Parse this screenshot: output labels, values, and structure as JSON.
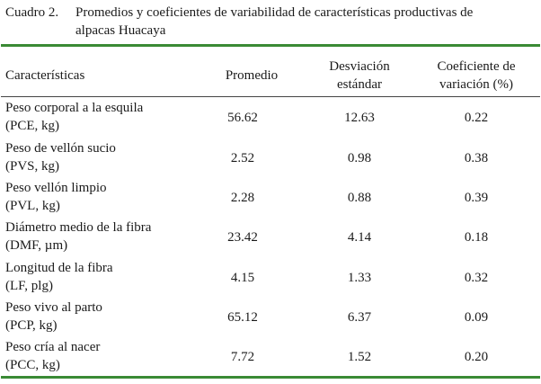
{
  "caption": {
    "label": "Cuadro 2.",
    "title_line1": "Promedios y coeficientes de variabilidad de características productivas de",
    "title_line2": "alpacas Huacaya"
  },
  "table": {
    "headers": {
      "col1": "Características",
      "col2": "Promedio",
      "col3_line1": "Desviación",
      "col3_line2": "estándar",
      "col4_line1": "Coeficiente de",
      "col4_line2": "variación (%)"
    },
    "rows": [
      {
        "name_line1": "Peso corporal a la esquila",
        "name_line2": "(PCE, kg)",
        "promedio": "56.62",
        "desviacion": "12.63",
        "coeficiente": "0.22"
      },
      {
        "name_line1": "Peso de vellón sucio",
        "name_line2": "(PVS, kg)",
        "promedio": "2.52",
        "desviacion": "0.98",
        "coeficiente": "0.38"
      },
      {
        "name_line1": "Peso vellón limpio",
        "name_line2": "(PVL, kg)",
        "promedio": "2.28",
        "desviacion": "0.88",
        "coeficiente": "0.39"
      },
      {
        "name_line1": "Diámetro medio de la fibra",
        "name_line2": "(DMF, µm)",
        "promedio": "23.42",
        "desviacion": "4.14",
        "coeficiente": "0.18"
      },
      {
        "name_line1": "Longitud de la fibra",
        "name_line2": "(LF, plg)",
        "promedio": "4.15",
        "desviacion": "1.33",
        "coeficiente": "0.32"
      },
      {
        "name_line1": "Peso vivo al parto",
        "name_line2": "(PCP, kg)",
        "promedio": "65.12",
        "desviacion": "6.37",
        "coeficiente": "0.09"
      },
      {
        "name_line1": "Peso cría al nacer",
        "name_line2": "(PCC, kg)",
        "promedio": "7.72",
        "desviacion": "1.52",
        "coeficiente": "0.20"
      }
    ]
  },
  "colors": {
    "rule_green": "#3a8a34"
  }
}
